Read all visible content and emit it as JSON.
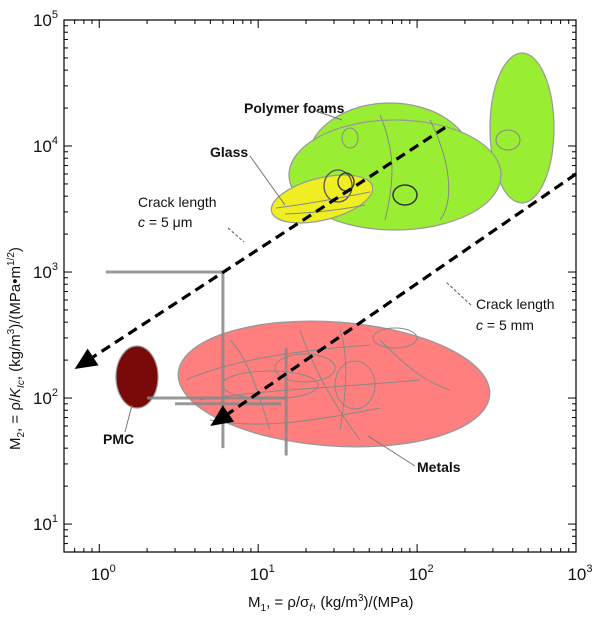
{
  "chart_data": {
    "type": "scatter",
    "title": "",
    "x_axis": {
      "label_parts": [
        "M",
        "1",
        ", = ρ/σ",
        "f",
        ", (kg/m",
        "3",
        ")/(MPa)"
      ],
      "scale": "log",
      "range": [
        0.6,
        1000
      ],
      "ticks": [
        {
          "base": "10",
          "exp": "0",
          "value": 1
        },
        {
          "base": "10",
          "exp": "1",
          "value": 10
        },
        {
          "base": "10",
          "exp": "2",
          "value": 100
        },
        {
          "base": "10",
          "exp": "3",
          "value": 1000
        }
      ]
    },
    "y_axis": {
      "label_parts": [
        "M",
        "2",
        ", = ρ/",
        "K",
        "Ic",
        ", (kg/m",
        "3",
        ")/(MPa•m",
        "1/2",
        ")"
      ],
      "scale": "log",
      "range": [
        6,
        100000
      ],
      "ticks": [
        {
          "base": "10",
          "exp": "1",
          "value": 10
        },
        {
          "base": "10",
          "exp": "2",
          "value": 100
        },
        {
          "base": "10",
          "exp": "3",
          "value": 1000
        },
        {
          "base": "10",
          "exp": "4",
          "value": 10000
        },
        {
          "base": "10",
          "exp": "5",
          "value": 100000
        }
      ]
    },
    "grid": false,
    "material_regions": [
      {
        "name": "Polymer foams",
        "color": "#99ee33",
        "x_range": [
          10,
          700
        ],
        "y_range": [
          2500,
          60000
        ]
      },
      {
        "name": "Glass",
        "color": "#eeee22",
        "x_range": [
          20,
          60
        ],
        "y_range": [
          2500,
          5000
        ]
      },
      {
        "name": "Metals",
        "color": "#ff7f7f",
        "x_range": [
          5,
          200
        ],
        "y_range": [
          30,
          400
        ]
      },
      {
        "name": "PMC",
        "color": "#7a0a0a",
        "x_range": [
          1.5,
          2.5
        ],
        "y_range": [
          80,
          200
        ]
      }
    ],
    "guide_lines": [
      {
        "name": "Crack length c = 5 μm",
        "from": [
          150,
          14000
        ],
        "to": [
          0.7,
          170
        ]
      },
      {
        "name": "Crack length c = 5 mm",
        "from": [
          1000,
          6000
        ],
        "to": [
          5,
          60
        ]
      }
    ],
    "annotations": [
      {
        "text": "Polymer foams"
      },
      {
        "text": "Glass"
      },
      {
        "text": "Metals"
      },
      {
        "text": "PMC"
      }
    ],
    "crack_labels": [
      {
        "line1": "Crack length",
        "pre": "c",
        "post": " = 5 μm"
      },
      {
        "line1": "Crack length",
        "pre": "c",
        "post": " = 5 mm"
      }
    ]
  }
}
